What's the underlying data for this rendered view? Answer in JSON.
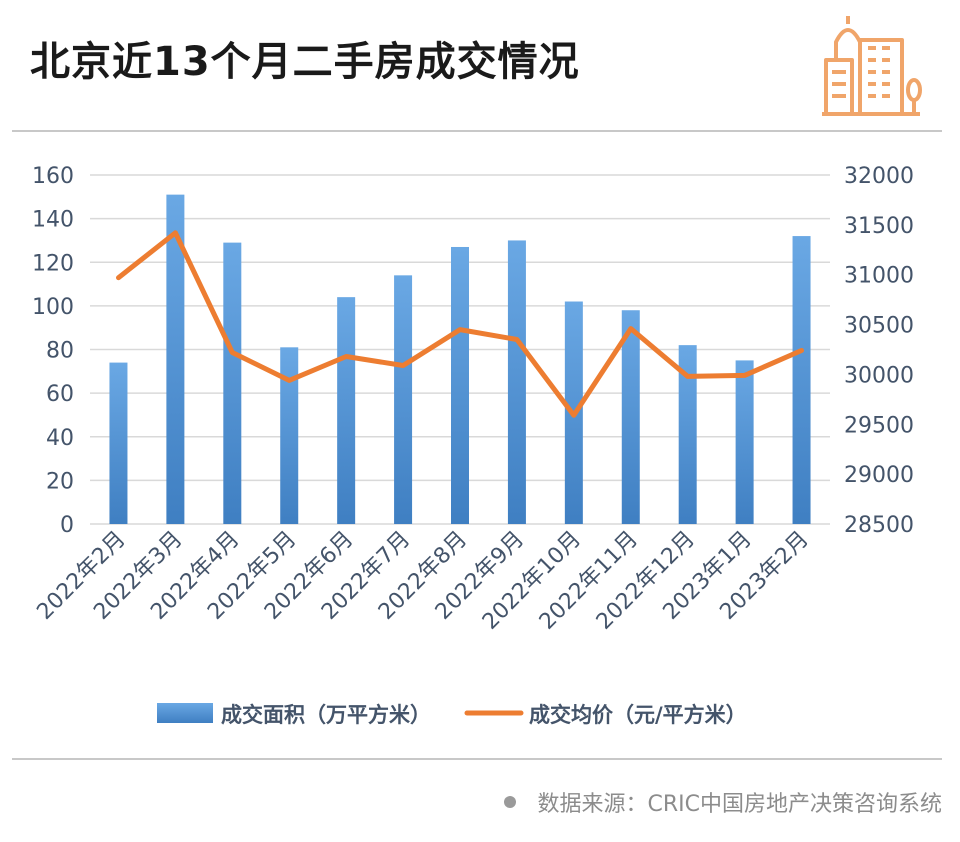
{
  "title": "北京近13个月二手房成交情况",
  "source": "数据来源：CRIC中国房地产决策咨询系统",
  "icons": {
    "logo": "city-buildings-icon",
    "source_bullet": "dot-icon"
  },
  "colors": {
    "bar": "#4f8fd0",
    "line": "#ed7d31",
    "axis_text": "#44546a",
    "grid": "#d9d9d9",
    "accent": "#f0a56a"
  },
  "chart_data": {
    "type": "bar",
    "categories": [
      "2022年2月",
      "2022年3月",
      "2022年4月",
      "2022年5月",
      "2022年6月",
      "2022年7月",
      "2022年8月",
      "2022年9月",
      "2022年10月",
      "2022年11月",
      "2022年12月",
      "2023年1月",
      "2023年2月"
    ],
    "series": [
      {
        "name": "成交面积（万平方米）",
        "type": "bar",
        "axis": "left",
        "values": [
          74,
          151,
          129,
          81,
          104,
          114,
          127,
          130,
          102,
          98,
          82,
          75,
          132
        ]
      },
      {
        "name": "成交均价（元/平方米）",
        "type": "line",
        "axis": "right",
        "values": [
          30970,
          31420,
          30220,
          29940,
          30180,
          30090,
          30450,
          30350,
          29590,
          30460,
          29980,
          29990,
          30240
        ]
      }
    ],
    "y_left": {
      "min": 0,
      "max": 160,
      "ticks": [
        0,
        20,
        40,
        60,
        80,
        100,
        120,
        140,
        160
      ]
    },
    "y_right": {
      "min": 28500,
      "max": 32000,
      "ticks": [
        28500,
        29000,
        29500,
        30000,
        30500,
        31000,
        31500,
        32000
      ]
    },
    "grid": true,
    "legend_position": "bottom"
  }
}
